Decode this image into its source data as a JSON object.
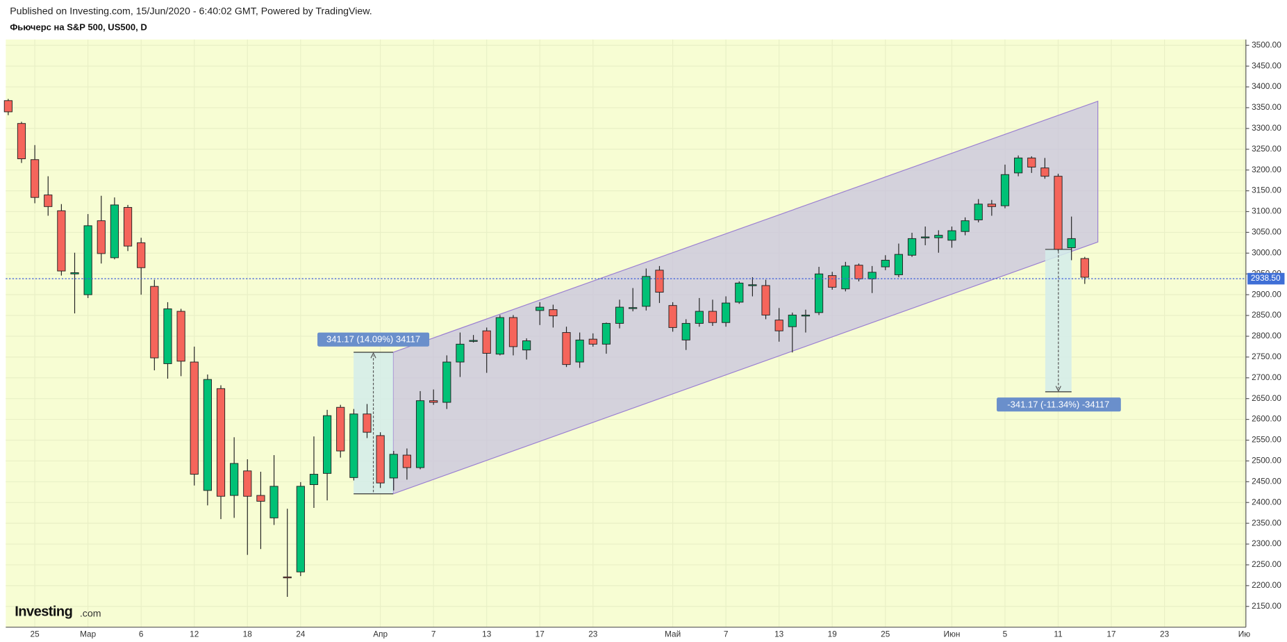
{
  "header": {
    "published": "Published on Investing.com, 15/Jun/2020 - 6:40:02 GMT, Powered by TradingView.",
    "logo_brand": "Investing",
    "logo_suffix": ".com"
  },
  "chart_data": {
    "type": "candlestick",
    "title": "Фьючерс на S&P 500, US500, D",
    "up_color": "#00c176",
    "down_color": "#f5655b",
    "categories": [
      null,
      null,
      "25",
      null,
      null,
      null,
      "Мар",
      null,
      null,
      null,
      "6",
      null,
      null,
      null,
      "12",
      null,
      null,
      null,
      "18",
      null,
      null,
      null,
      "24",
      null,
      null,
      null,
      null,
      null,
      "Апр",
      null,
      null,
      null,
      "7",
      null,
      null,
      null,
      "13",
      null,
      null,
      null,
      "17",
      null,
      null,
      null,
      "23",
      null,
      null,
      null,
      null,
      null,
      "Май",
      null,
      null,
      null,
      "7",
      null,
      null,
      null,
      "13",
      null,
      null,
      null,
      "19",
      null,
      null,
      null,
      "25",
      null,
      null,
      null,
      null,
      "Июн",
      null,
      null,
      null,
      "5",
      null,
      null,
      null,
      "11",
      null,
      null,
      null,
      "17",
      null,
      null,
      null,
      "23",
      null,
      null,
      null,
      null,
      null,
      "Ию"
    ],
    "open": [
      3367,
      3312,
      3225,
      3140,
      3102,
      2950,
      2900,
      3078,
      2989,
      3110,
      3025,
      2920,
      2734,
      2860,
      2738,
      2429,
      2674,
      2417,
      2476,
      2417,
      2363,
      2221,
      2233,
      2443,
      2470,
      2629,
      2460,
      2613,
      2561,
      2459,
      2514,
      2484,
      2645,
      2641,
      2738,
      2788,
      2813,
      2757,
      2845,
      2767,
      2862,
      2864,
      2809,
      2738,
      2793,
      2781,
      2831,
      2867,
      2872,
      2959,
      2874,
      2791,
      2831,
      2860,
      2833,
      2882,
      2923,
      2922,
      2839,
      2823,
      2850,
      2857,
      2946,
      2914,
      2971,
      2938,
      2967,
      2948,
      2995,
      3038,
      3037,
      3031,
      3052,
      3080,
      3118,
      3114,
      3193,
      3229,
      3205,
      3185,
      3013,
      2987,
      null,
      null,
      null,
      null,
      null,
      null,
      null,
      null,
      null,
      null,
      null,
      null
    ],
    "high": [
      3371,
      3316,
      3260,
      3185,
      3118,
      3001,
      3094,
      3138,
      3134,
      3116,
      3037,
      2936,
      2882,
      2866,
      2775,
      2708,
      2682,
      2557,
      2504,
      2474,
      2514,
      2385,
      2449,
      2559,
      2623,
      2635,
      2625,
      2637,
      2569,
      2524,
      2530,
      2668,
      2672,
      2754,
      2809,
      2803,
      2821,
      2851,
      2851,
      2795,
      2882,
      2876,
      2823,
      2809,
      2807,
      2833,
      2888,
      2916,
      2963,
      2969,
      2882,
      2841,
      2892,
      2888,
      2896,
      2932,
      2942,
      2936,
      2868,
      2857,
      2864,
      2967,
      2955,
      2979,
      2975,
      2969,
      2995,
      3023,
      3049,
      3064,
      3055,
      3064,
      3086,
      3130,
      3128,
      3213,
      3235,
      3233,
      3229,
      3191,
      3088,
      2991,
      null,
      null,
      null,
      null,
      null,
      null,
      null,
      null,
      null,
      null,
      null,
      null
    ],
    "low": [
      3332,
      3217,
      3120,
      3090,
      2946,
      2855,
      2892,
      2975,
      2985,
      3005,
      2900,
      2718,
      2698,
      2704,
      2441,
      2393,
      2360,
      2363,
      2274,
      2288,
      2346,
      2173,
      2223,
      2387,
      2405,
      2508,
      2453,
      2555,
      2435,
      2429,
      2455,
      2480,
      2635,
      2625,
      2702,
      2785,
      2712,
      2754,
      2754,
      2744,
      2827,
      2821,
      2726,
      2724,
      2775,
      2758,
      2819,
      2860,
      2862,
      2880,
      2811,
      2767,
      2823,
      2825,
      2823,
      2878,
      2896,
      2841,
      2787,
      2761,
      2809,
      2851,
      2912,
      2908,
      2932,
      2904,
      2959,
      2942,
      2991,
      3019,
      3001,
      3013,
      3043,
      3074,
      3090,
      3108,
      3185,
      3193,
      3179,
      3005,
      2983,
      2926,
      null,
      null,
      null,
      null,
      null,
      null,
      null,
      null,
      null,
      null,
      null,
      null
    ],
    "close": [
      3340,
      3227,
      3134,
      3112,
      2957,
      2953,
      3066,
      2999,
      3116,
      3017,
      2965,
      2748,
      2866,
      2740,
      2468,
      2696,
      2415,
      2494,
      2415,
      2403,
      2439,
      2219,
      2439,
      2468,
      2609,
      2524,
      2613,
      2569,
      2447,
      2516,
      2484,
      2645,
      2641,
      2738,
      2781,
      2790,
      2759,
      2845,
      2775,
      2789,
      2870,
      2849,
      2732,
      2791,
      2781,
      2831,
      2870,
      2869,
      2944,
      2906,
      2821,
      2831,
      2860,
      2833,
      2880,
      2928,
      2924,
      2851,
      2813,
      2851,
      2851,
      2950,
      2918,
      2969,
      2938,
      2954,
      2983,
      2997,
      3035,
      3039,
      3043,
      3054,
      3078,
      3118,
      3112,
      3189,
      3229,
      3207,
      3185,
      3009,
      3035,
      2942,
      null,
      null,
      null,
      null,
      null,
      null,
      null,
      null,
      null,
      null,
      null,
      null
    ],
    "ylim": [
      2100,
      3514
    ],
    "yticks": [
      {
        "value": 2150,
        "label": "2150.00"
      },
      {
        "value": 2200,
        "label": "2200.00"
      },
      {
        "value": 2250,
        "label": "2250.00"
      },
      {
        "value": 2300,
        "label": "2300.00"
      },
      {
        "value": 2350,
        "label": "2350.00"
      },
      {
        "value": 2400,
        "label": "2400.00"
      },
      {
        "value": 2450,
        "label": "2450.00"
      },
      {
        "value": 2500,
        "label": "2500.00"
      },
      {
        "value": 2550,
        "label": "2550.00"
      },
      {
        "value": 2600,
        "label": "2600.00"
      },
      {
        "value": 2650,
        "label": "2650.00"
      },
      {
        "value": 2700,
        "label": "2700.00"
      },
      {
        "value": 2750,
        "label": "2750.00"
      },
      {
        "value": 2800,
        "label": "2800.00"
      },
      {
        "value": 2850,
        "label": "2850.00"
      },
      {
        "value": 2900,
        "label": "2900.00"
      },
      {
        "value": 2950,
        "label": "2950.00"
      },
      {
        "value": 3000,
        "label": "3000.00"
      },
      {
        "value": 3050,
        "label": "3050.00"
      },
      {
        "value": 3100,
        "label": "3100.00"
      },
      {
        "value": 3150,
        "label": "3150.00"
      },
      {
        "value": 3200,
        "label": "3200.00"
      },
      {
        "value": 3250,
        "label": "3250.00"
      },
      {
        "value": 3300,
        "label": "3300.00"
      },
      {
        "value": 3350,
        "label": "3350.00"
      },
      {
        "value": 3400,
        "label": "3400.00"
      },
      {
        "value": 3450,
        "label": "3450.00"
      },
      {
        "value": 3500,
        "label": "3500.00"
      }
    ],
    "grid": true,
    "current_price": {
      "value": 2938.5,
      "label": "2938.50"
    },
    "annotations": [
      "341.17 (14.09%) 34117",
      "-341.17 (-11.34%) -34117"
    ]
  }
}
